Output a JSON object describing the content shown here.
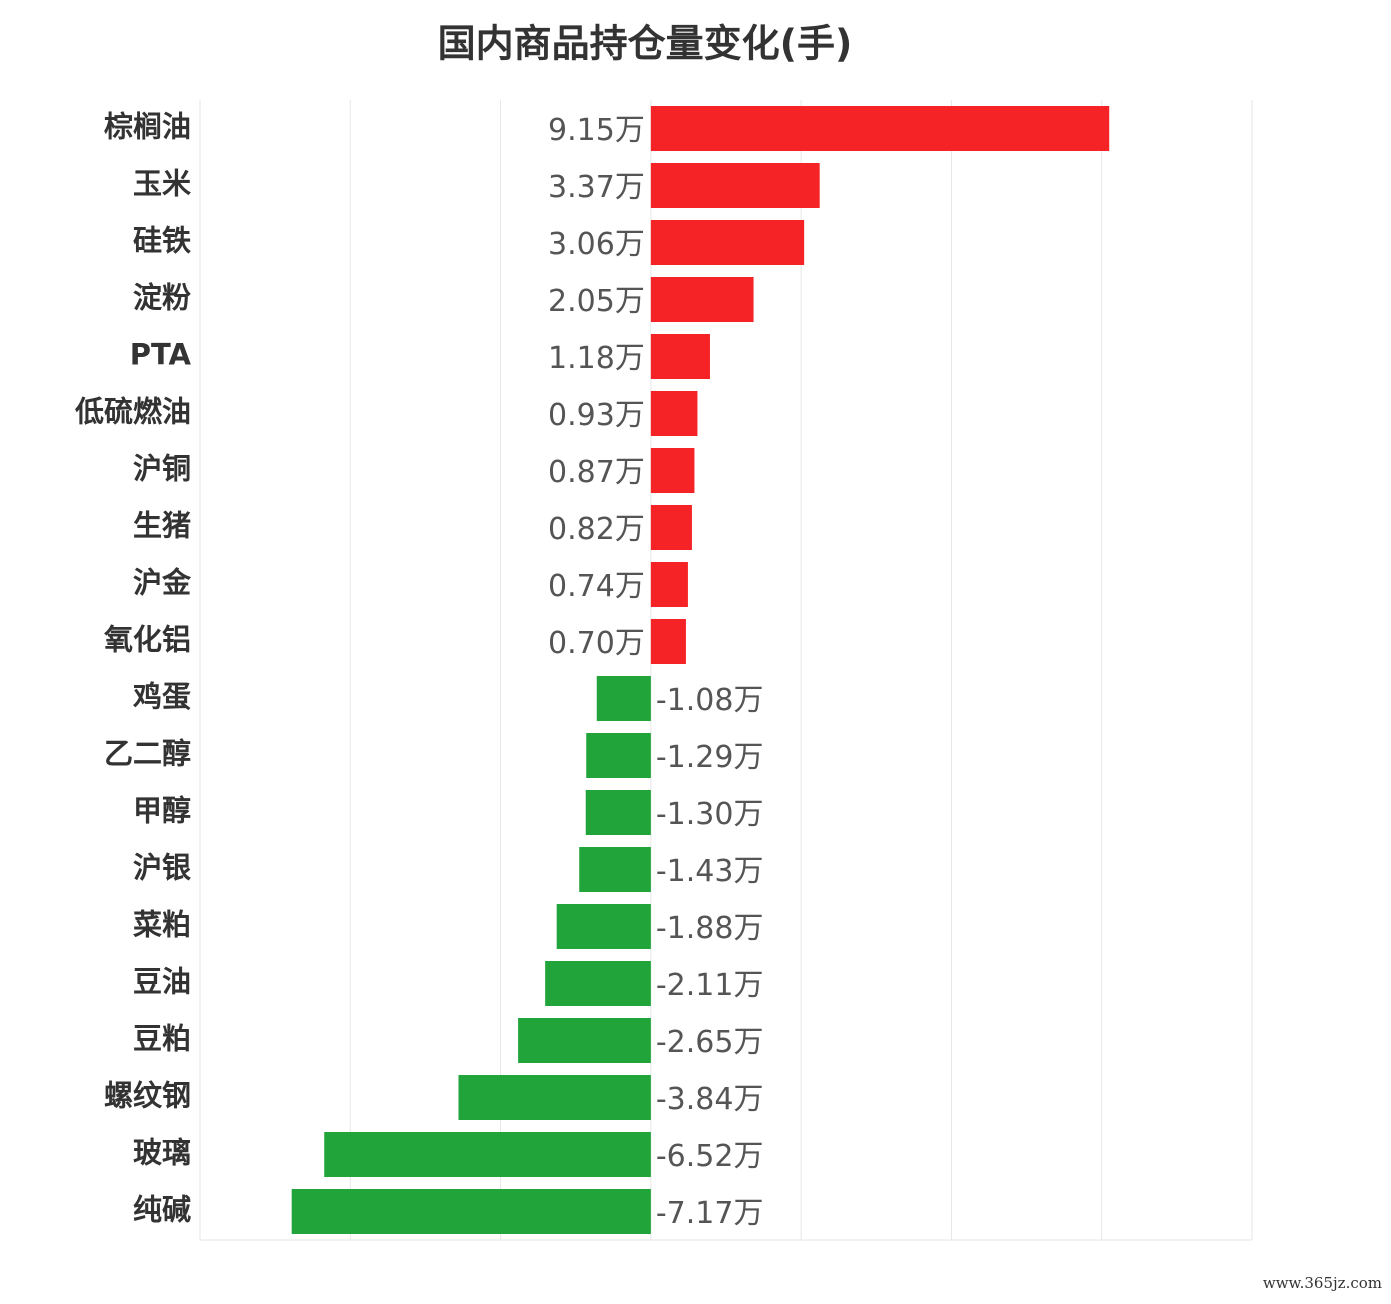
{
  "chart_data": {
    "type": "bar",
    "orientation": "horizontal",
    "title": "国内商品持仓量变化(手)",
    "categories": [
      "棕榈油",
      "玉米",
      "硅铁",
      "淀粉",
      "PTA",
      "低硫燃油",
      "沪铜",
      "生猪",
      "沪金",
      "氧化铝",
      "鸡蛋",
      "乙二醇",
      "甲醇",
      "沪银",
      "菜粕",
      "豆油",
      "豆粕",
      "螺纹钢",
      "玻璃",
      "纯碱"
    ],
    "values": [
      9.15,
      3.37,
      3.06,
      2.05,
      1.18,
      0.93,
      0.87,
      0.82,
      0.74,
      0.7,
      -1.08,
      -1.29,
      -1.3,
      -1.43,
      -1.88,
      -2.11,
      -2.65,
      -3.84,
      -6.52,
      -7.17
    ],
    "value_labels": [
      "9.15万",
      "3.37万",
      "3.06万",
      "2.05万",
      "1.18万",
      "0.93万",
      "0.87万",
      "0.82万",
      "0.74万",
      "0.70万",
      "-1.08万",
      "-1.29万",
      "-1.30万",
      "-1.43万",
      "-1.88万",
      "-2.11万",
      "-2.65万",
      "-3.84万",
      "-6.52万",
      "-7.17万"
    ],
    "positive_color": "#f52226",
    "negative_color": "#21a53a",
    "xlim": [
      -9,
      12
    ],
    "xticks": [
      -9,
      -6,
      -3,
      0,
      3,
      6,
      9,
      12
    ],
    "grid": true,
    "watermark": "www.365jz.com"
  }
}
